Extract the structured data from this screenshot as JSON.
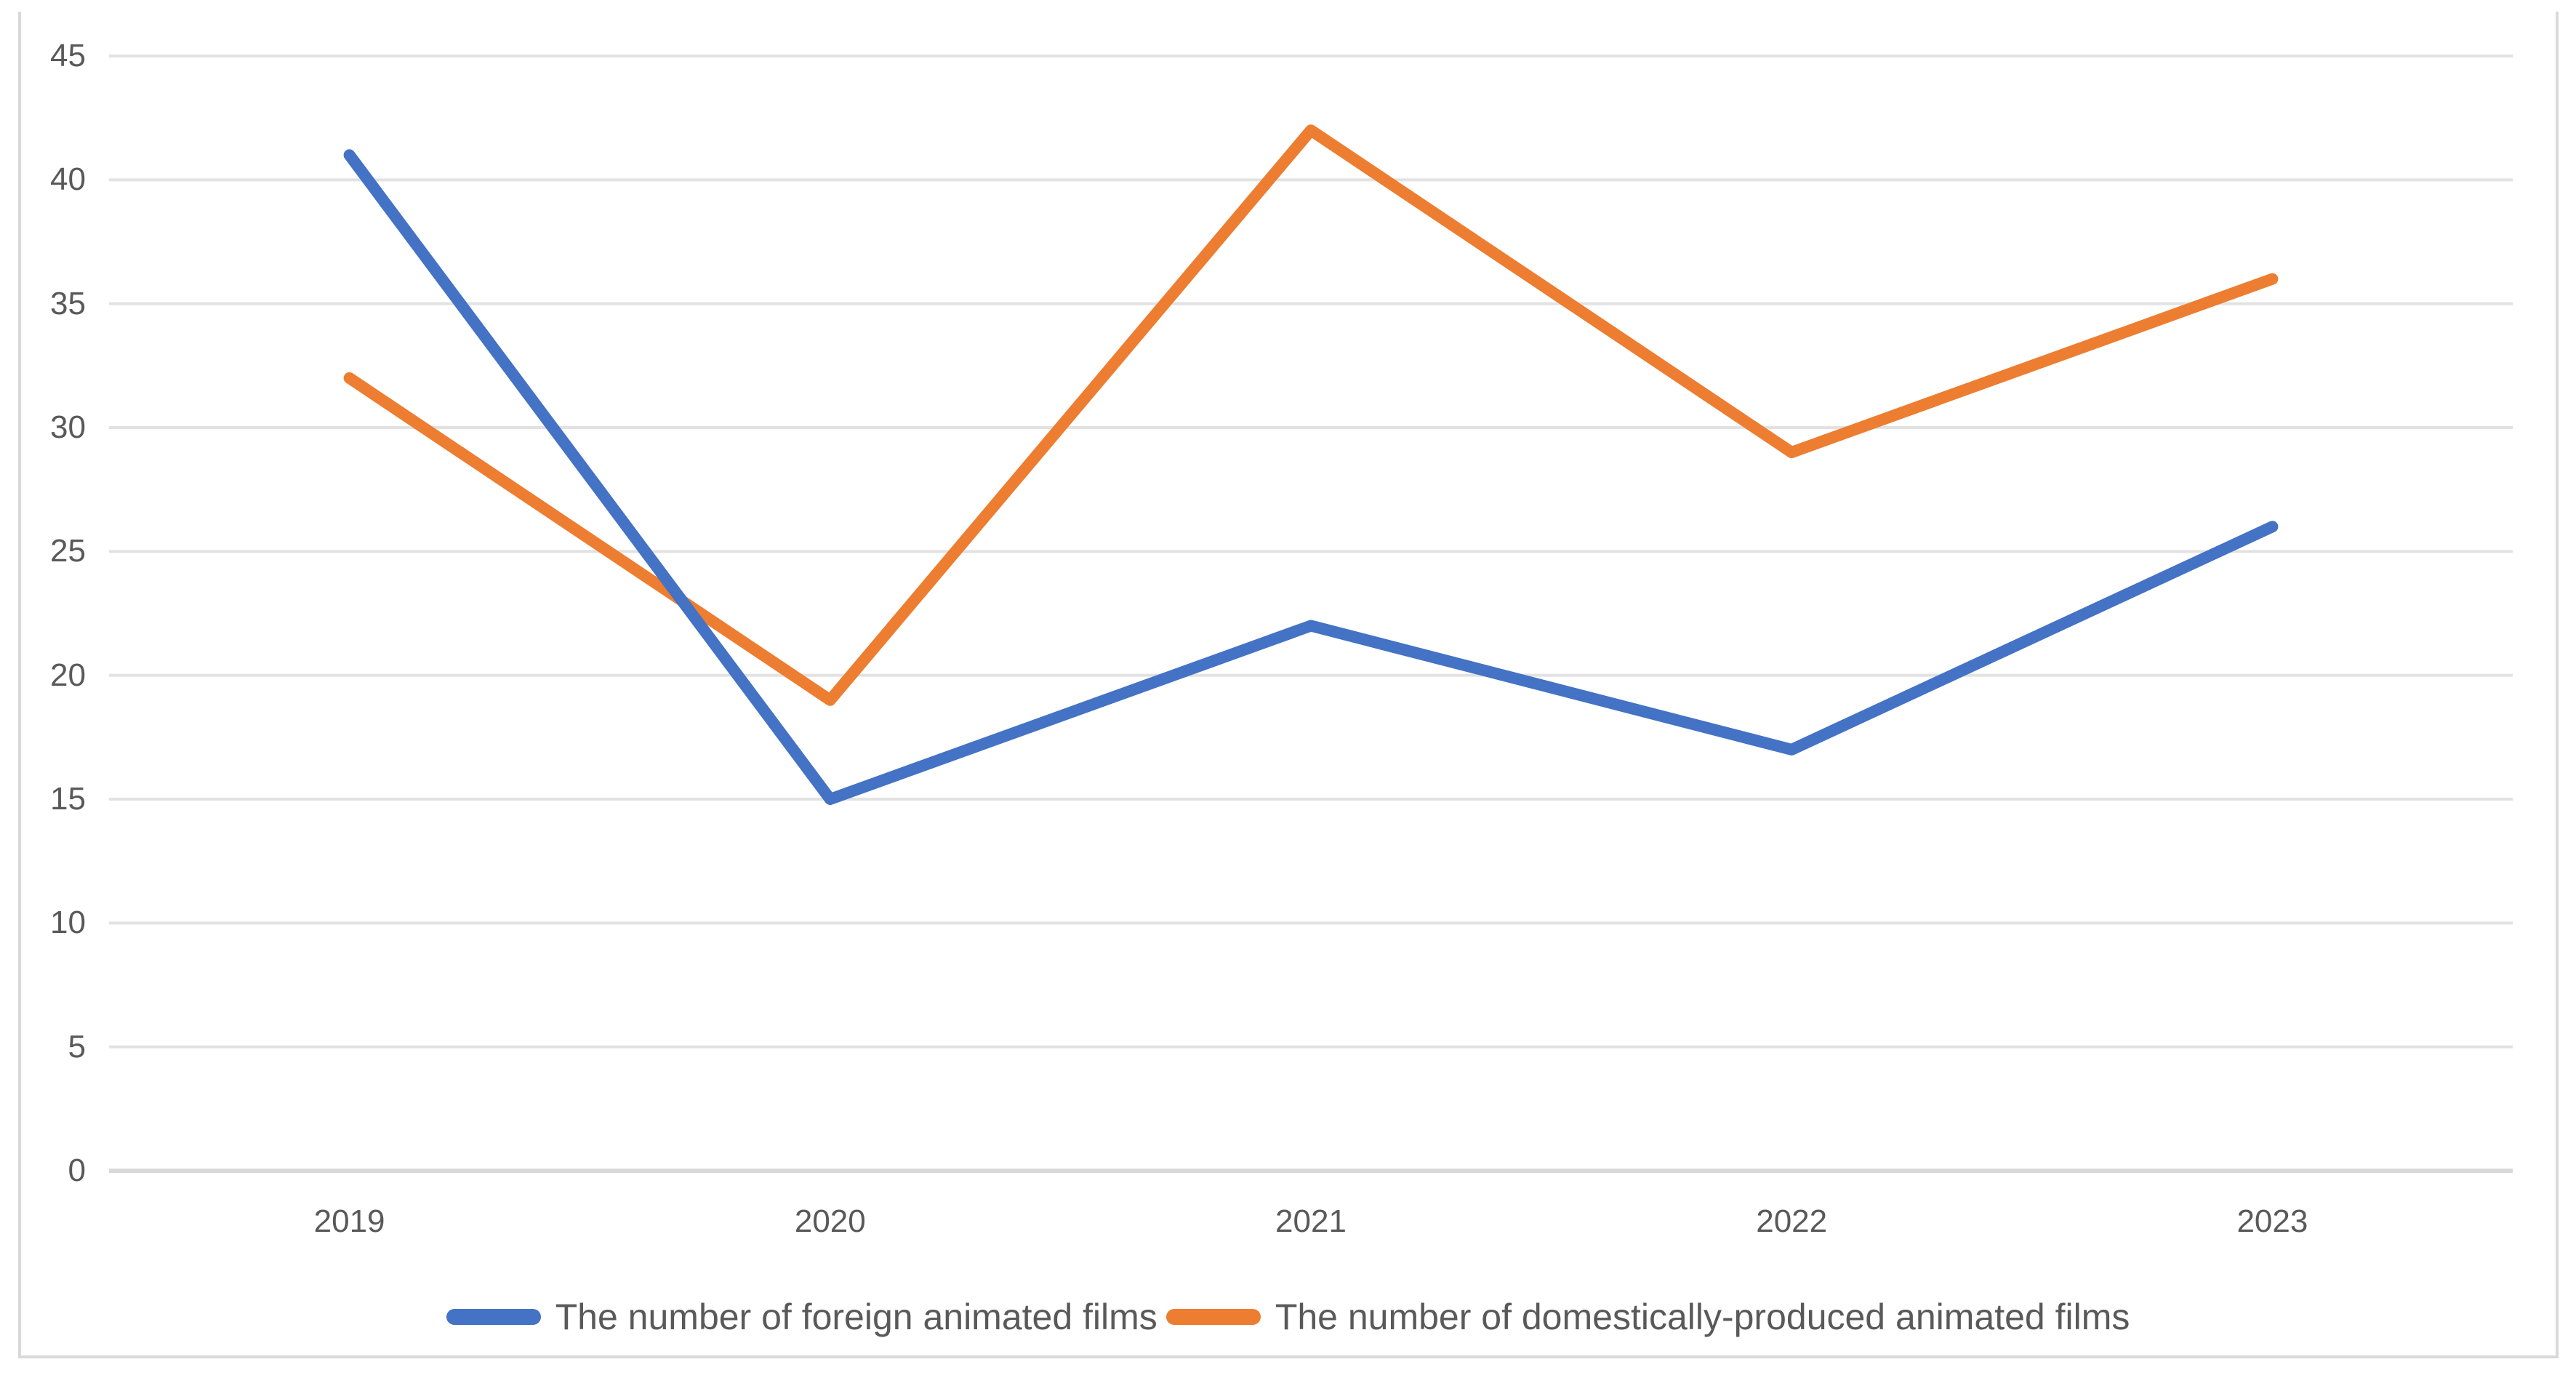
{
  "chart_data": {
    "type": "line",
    "categories": [
      "2019",
      "2020",
      "2021",
      "2022",
      "2023"
    ],
    "series": [
      {
        "name": "The number of foreign animated films",
        "color": "#4472C4",
        "values": [
          41,
          15,
          22,
          17,
          26
        ]
      },
      {
        "name": "The number of domestically-produced animated films",
        "color": "#ED7D31",
        "values": [
          32,
          19,
          42,
          29,
          36
        ]
      }
    ],
    "title": "",
    "xlabel": "",
    "ylabel": "",
    "ylim": [
      0,
      45
    ],
    "yticks": [
      0,
      5,
      10,
      15,
      20,
      25,
      30,
      35,
      40,
      45
    ],
    "grid": true,
    "legend_position": "bottom"
  },
  "styles": {
    "gridline_color": "#E2E2E2",
    "axis_line_color": "#D9D9D9",
    "tick_label_color": "#595959",
    "frame_border_color": "#D9D9D9",
    "background": "#FFFFFF",
    "line_width": 16
  }
}
